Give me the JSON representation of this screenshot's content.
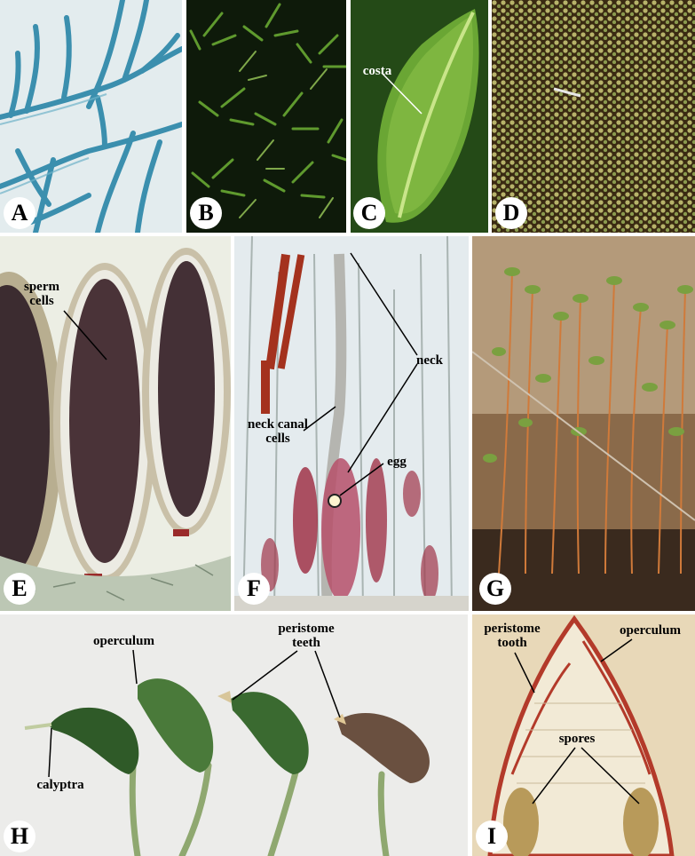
{
  "panels": {
    "A": {
      "label": "A"
    },
    "B": {
      "label": "B"
    },
    "C": {
      "label": "C",
      "annotations": {
        "costa": "costa"
      }
    },
    "D": {
      "label": "D"
    },
    "E": {
      "label": "E",
      "annotations": {
        "sperm_1": "sperm",
        "sperm_2": "cells"
      }
    },
    "F": {
      "label": "F",
      "annotations": {
        "neck": "neck",
        "neck_canal_1": "neck canal",
        "neck_canal_2": "cells",
        "egg": "egg"
      }
    },
    "G": {
      "label": "G"
    },
    "H": {
      "label": "H",
      "annotations": {
        "operculum": "operculum",
        "peristome_1": "peristome",
        "peristome_2": "teeth",
        "calyptra": "calyptra"
      }
    },
    "I": {
      "label": "I",
      "annotations": {
        "peristome_1": "peristome",
        "peristome_2": "tooth",
        "operculum": "operculum",
        "spores": "spores"
      }
    }
  }
}
